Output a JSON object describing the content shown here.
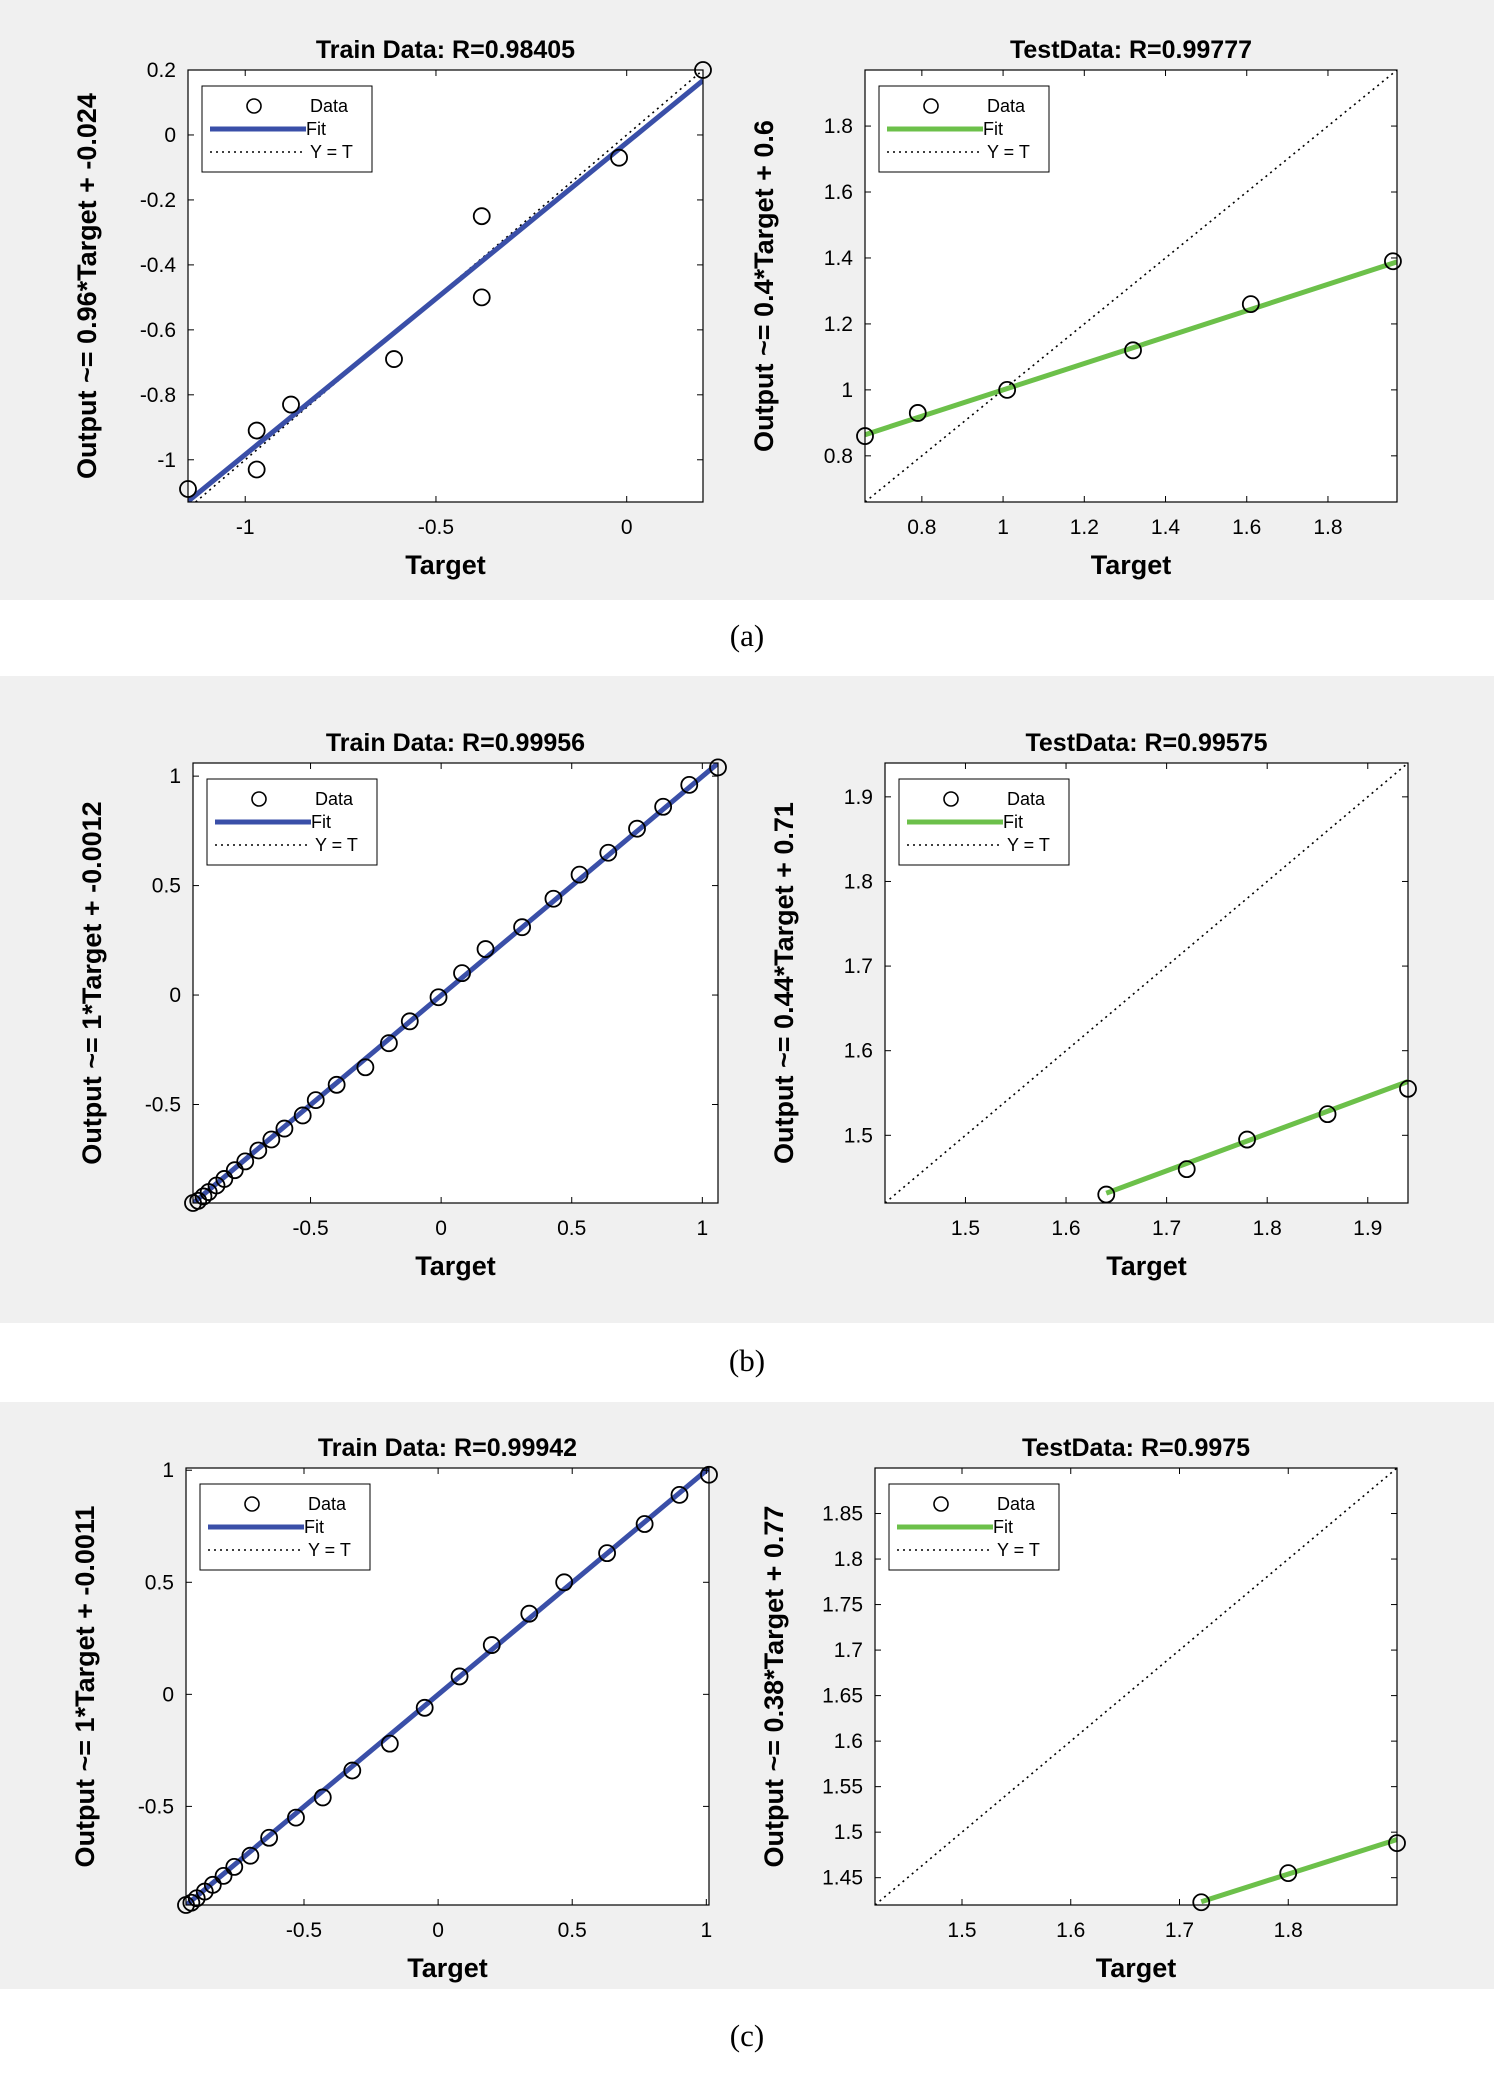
{
  "captions": [
    "(a)",
    "(b)",
    "(c)"
  ],
  "legend": {
    "data": "Data",
    "fit": "Fit",
    "yt": "Y = T"
  },
  "colors": {
    "train_fit": "#3a4fa8",
    "test_fit": "#6cc04a",
    "panel_bg": "#f0f0f0"
  },
  "chart_data": [
    {
      "id": "a-train",
      "type": "scatter",
      "title": "Train Data: R=0.98405",
      "xlabel": "Target",
      "ylabel": "Output ~= 0.96*Target + -0.024",
      "xlim": [
        -1.15,
        0.2
      ],
      "ylim": [
        -1.13,
        0.2
      ],
      "xticks": [
        -1,
        -0.5,
        0
      ],
      "xtick_labels": [
        "-1",
        "-0.5",
        "0"
      ],
      "yticks": [
        0.2,
        0,
        -0.2,
        -0.4,
        -0.6,
        -0.8,
        -1
      ],
      "ytick_labels": [
        "0.2",
        "0",
        "-0.2",
        "-0.4",
        "-0.6",
        "-0.8",
        "-1"
      ],
      "fit": {
        "slope": 0.96,
        "intercept": -0.024
      },
      "points": [
        [
          -1.15,
          -1.09
        ],
        [
          -0.97,
          -0.91
        ],
        [
          -0.97,
          -1.03
        ],
        [
          -0.88,
          -0.83
        ],
        [
          -0.61,
          -0.69
        ],
        [
          -0.38,
          -0.25
        ],
        [
          -0.38,
          -0.5
        ],
        [
          -0.02,
          -0.07
        ],
        [
          0.2,
          0.2
        ]
      ]
    },
    {
      "id": "a-test",
      "type": "scatter",
      "title": "TestData: R=0.99777",
      "xlabel": "Target",
      "ylabel": "Output ~= 0.4*Target + 0.6",
      "xlim": [
        0.66,
        1.97
      ],
      "ylim": [
        0.66,
        1.97
      ],
      "xticks": [
        0.8,
        1,
        1.2,
        1.4,
        1.6,
        1.8
      ],
      "xtick_labels": [
        "0.8",
        "1",
        "1.2",
        "1.4",
        "1.6",
        "1.8"
      ],
      "yticks": [
        1.8,
        1.6,
        1.4,
        1.2,
        1,
        0.8
      ],
      "ytick_labels": [
        "1.8",
        "1.6",
        "1.4",
        "1.2",
        "1",
        "0.8"
      ],
      "fit": {
        "slope": 0.4,
        "intercept": 0.6
      },
      "points": [
        [
          0.66,
          0.86
        ],
        [
          0.79,
          0.93
        ],
        [
          1.01,
          1.0
        ],
        [
          1.32,
          1.12
        ],
        [
          1.61,
          1.26
        ],
        [
          1.96,
          1.39
        ]
      ]
    },
    {
      "id": "b-train",
      "type": "scatter",
      "title": "Train Data: R=0.99956",
      "xlabel": "Target",
      "ylabel": "Output ~= 1*Target + -0.0012",
      "xlim": [
        -0.95,
        1.06
      ],
      "ylim": [
        -0.95,
        1.06
      ],
      "xticks": [
        -0.5,
        0,
        0.5,
        1
      ],
      "xtick_labels": [
        "-0.5",
        "0",
        "0.5",
        "1"
      ],
      "yticks": [
        1,
        0.5,
        0,
        -0.5
      ],
      "ytick_labels": [
        "1",
        "0.5",
        "0",
        "-0.5"
      ],
      "fit": {
        "slope": 1.0,
        "intercept": -0.0012
      },
      "points": [
        [
          -0.95,
          -0.95
        ],
        [
          -0.93,
          -0.94
        ],
        [
          -0.91,
          -0.92
        ],
        [
          -0.89,
          -0.9
        ],
        [
          -0.86,
          -0.87
        ],
        [
          -0.83,
          -0.84
        ],
        [
          -0.79,
          -0.8
        ],
        [
          -0.75,
          -0.76
        ],
        [
          -0.7,
          -0.71
        ],
        [
          -0.65,
          -0.66
        ],
        [
          -0.6,
          -0.61
        ],
        [
          -0.53,
          -0.55
        ],
        [
          -0.48,
          -0.48
        ],
        [
          -0.4,
          -0.41
        ],
        [
          -0.29,
          -0.33
        ],
        [
          -0.2,
          -0.22
        ],
        [
          -0.12,
          -0.12
        ],
        [
          -0.01,
          -0.01
        ],
        [
          0.08,
          0.1
        ],
        [
          0.17,
          0.21
        ],
        [
          0.31,
          0.31
        ],
        [
          0.43,
          0.44
        ],
        [
          0.53,
          0.55
        ],
        [
          0.64,
          0.65
        ],
        [
          0.75,
          0.76
        ],
        [
          0.85,
          0.86
        ],
        [
          0.95,
          0.96
        ],
        [
          1.06,
          1.04
        ]
      ]
    },
    {
      "id": "b-test",
      "type": "scatter",
      "title": "TestData: R=0.99575",
      "xlabel": "Target",
      "ylabel": "Output ~= 0.44*Target + 0.71",
      "xlim": [
        1.42,
        1.94
      ],
      "ylim": [
        1.42,
        1.94
      ],
      "xticks": [
        1.5,
        1.6,
        1.7,
        1.8,
        1.9
      ],
      "xtick_labels": [
        "1.5",
        "1.6",
        "1.7",
        "1.8",
        "1.9"
      ],
      "yticks": [
        1.9,
        1.8,
        1.7,
        1.6,
        1.5
      ],
      "ytick_labels": [
        "1.9",
        "1.8",
        "1.7",
        "1.6",
        "1.5"
      ],
      "fit": {
        "slope": 0.44,
        "intercept": 0.71
      },
      "fit_xrange": [
        1.64,
        1.94
      ],
      "points": [
        [
          1.64,
          1.43
        ],
        [
          1.72,
          1.46
        ],
        [
          1.78,
          1.495
        ],
        [
          1.86,
          1.525
        ],
        [
          1.94,
          1.555
        ]
      ]
    },
    {
      "id": "c-train",
      "type": "scatter",
      "title": "Train Data: R=0.99942",
      "xlabel": "Target",
      "ylabel": "Output ~= 1*Target + -0.0011",
      "xlim": [
        -0.94,
        1.01
      ],
      "ylim": [
        -0.94,
        1.01
      ],
      "xticks": [
        -0.5,
        0,
        0.5,
        1
      ],
      "xtick_labels": [
        "-0.5",
        "0",
        "0.5",
        "1"
      ],
      "yticks": [
        1,
        0.5,
        0,
        -0.5
      ],
      "ytick_labels": [
        "1",
        "0.5",
        "0",
        "-0.5"
      ],
      "fit": {
        "slope": 1.0,
        "intercept": -0.0011
      },
      "points": [
        [
          -0.94,
          -0.94
        ],
        [
          -0.92,
          -0.93
        ],
        [
          -0.9,
          -0.91
        ],
        [
          -0.87,
          -0.88
        ],
        [
          -0.84,
          -0.85
        ],
        [
          -0.8,
          -0.81
        ],
        [
          -0.76,
          -0.77
        ],
        [
          -0.7,
          -0.72
        ],
        [
          -0.63,
          -0.64
        ],
        [
          -0.53,
          -0.55
        ],
        [
          -0.43,
          -0.46
        ],
        [
          -0.32,
          -0.34
        ],
        [
          -0.18,
          -0.22
        ],
        [
          -0.05,
          -0.06
        ],
        [
          0.08,
          0.08
        ],
        [
          0.2,
          0.22
        ],
        [
          0.34,
          0.36
        ],
        [
          0.47,
          0.5
        ],
        [
          0.63,
          0.63
        ],
        [
          0.77,
          0.76
        ],
        [
          0.9,
          0.89
        ],
        [
          1.01,
          0.98
        ]
      ]
    },
    {
      "id": "c-test",
      "type": "scatter",
      "title": "TestData: R=0.9975",
      "xlabel": "Target",
      "ylabel": "Output ~= 0.38*Target + 0.77",
      "xlim": [
        1.42,
        1.9
      ],
      "ylim": [
        1.42,
        1.9
      ],
      "xticks": [
        1.5,
        1.6,
        1.7,
        1.8
      ],
      "xtick_labels": [
        "1.5",
        "1.6",
        "1.7",
        "1.8"
      ],
      "yticks": [
        1.85,
        1.8,
        1.75,
        1.7,
        1.65,
        1.6,
        1.55,
        1.5,
        1.45
      ],
      "ytick_labels": [
        "1.85",
        "1.8",
        "1.75",
        "1.7",
        "1.65",
        "1.6",
        "1.55",
        "1.5",
        "1.45"
      ],
      "fit": {
        "slope": 0.38,
        "intercept": 0.77
      },
      "fit_xrange": [
        1.72,
        1.9
      ],
      "points": [
        [
          1.72,
          1.423
        ],
        [
          1.8,
          1.455
        ],
        [
          1.9,
          1.488
        ]
      ]
    }
  ]
}
